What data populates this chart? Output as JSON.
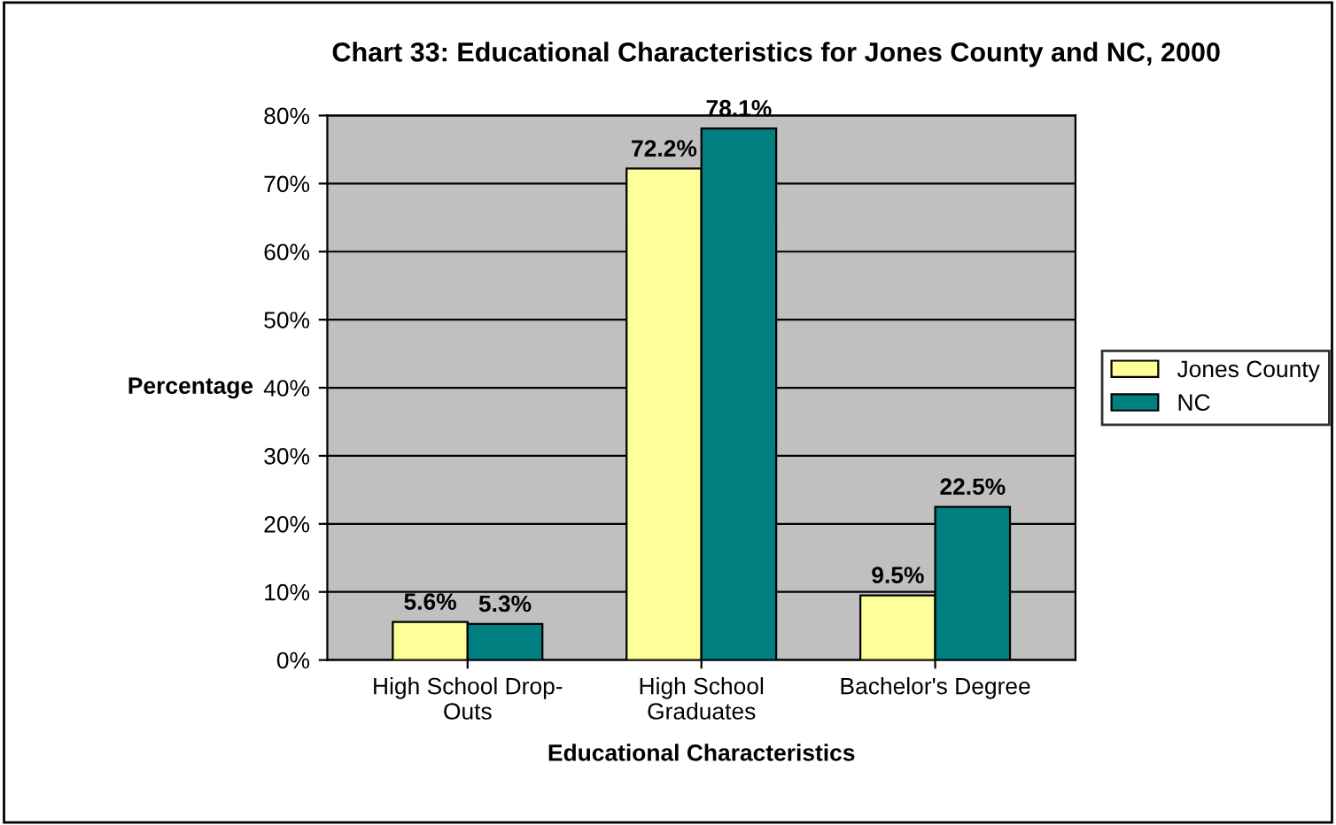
{
  "chart_data": {
    "type": "bar",
    "title": "Chart 33: Educational Characteristics for Jones County and NC, 2000",
    "xlabel": "Educational Characteristics",
    "ylabel": "Percentage",
    "categories": [
      "High School Drop-\nOuts",
      "High School\nGraduates",
      "Bachelor's Degree"
    ],
    "series": [
      {
        "name": "Jones County",
        "color": "#ffff99",
        "values": [
          5.6,
          72.2,
          9.5
        ],
        "value_labels": [
          "5.6%",
          "72.2%",
          "9.5%"
        ]
      },
      {
        "name": "NC",
        "color": "#008080",
        "values": [
          5.3,
          78.1,
          22.5
        ],
        "value_labels": [
          "5.3%",
          "78.1%",
          "22.5%"
        ]
      }
    ],
    "ylim": [
      0,
      80
    ],
    "yticks": [
      {
        "value": 0,
        "label": "0%"
      },
      {
        "value": 10,
        "label": "10%"
      },
      {
        "value": 20,
        "label": "20%"
      },
      {
        "value": 30,
        "label": "30%"
      },
      {
        "value": 40,
        "label": "40%"
      },
      {
        "value": 50,
        "label": "50%"
      },
      {
        "value": 60,
        "label": "60%"
      },
      {
        "value": 70,
        "label": "70%"
      },
      {
        "value": 80,
        "label": "80%"
      }
    ],
    "grid": "y",
    "legend": "right"
  }
}
